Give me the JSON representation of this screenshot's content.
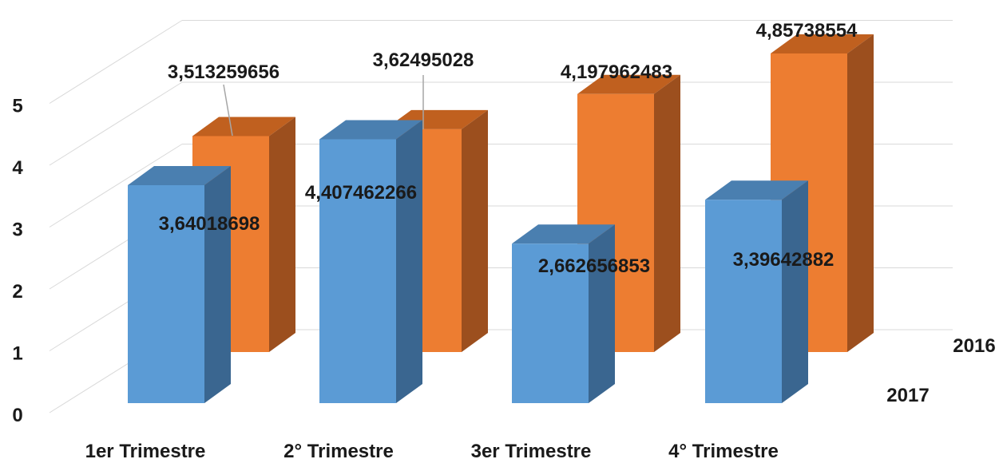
{
  "chart_data": {
    "type": "bar",
    "variant": "3d-column-depth",
    "categories": [
      "1er Trimestre",
      "2° Trimestre",
      "3er Trimestre",
      "4° Trimestre"
    ],
    "series": [
      {
        "name": "2016",
        "values": [
          3.513259656,
          3.62495028,
          4.197962483,
          4.85738554
        ],
        "labels": [
          "3,513259656",
          "3,62495028",
          "4,197962483",
          "4,85738554"
        ],
        "color": "#ED7D31",
        "color_side": "#9C4F1E",
        "color_top": "#C0601F",
        "row": "back"
      },
      {
        "name": "2017",
        "values": [
          3.64018698,
          4.407462266,
          2.662656853,
          3.39642882
        ],
        "labels": [
          "3,64018698",
          "4,407462266",
          "2,662656853",
          "3,39642882"
        ],
        "color": "#5B9BD5",
        "color_side": "#3A6690",
        "color_top": "#4A7FB0",
        "row": "front"
      }
    ],
    "y_ticks": [
      "0",
      "1",
      "2",
      "3",
      "4",
      "5"
    ],
    "ylim": [
      0,
      5.5
    ],
    "grid": true,
    "grid_color": "#D9D9D9",
    "leader_line_color": "#A6A6A6"
  }
}
